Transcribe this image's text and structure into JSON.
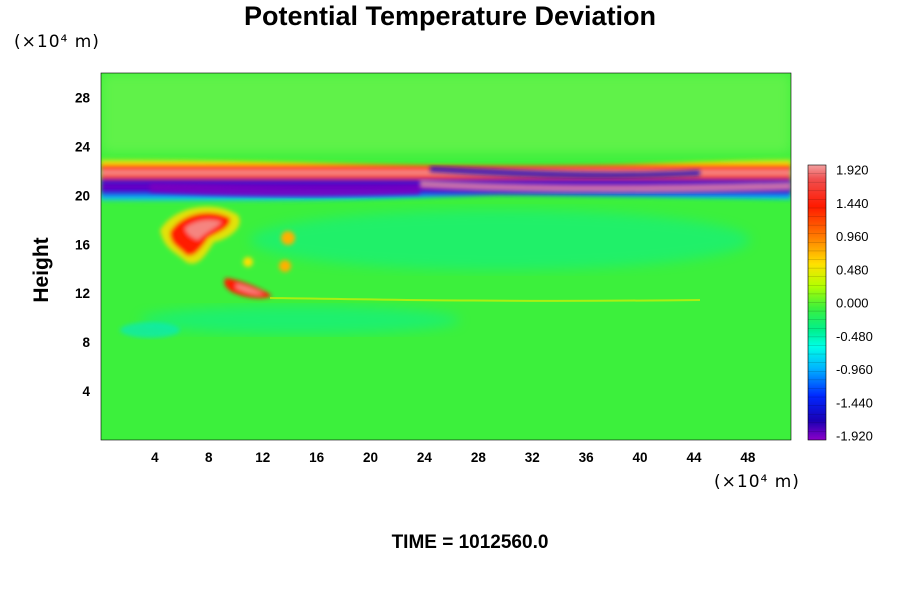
{
  "title": "Potential Temperature Deviation",
  "time_label": "TIME = 1012560.0",
  "chart_data": {
    "type": "heatmap",
    "title": "Potential Temperature Deviation",
    "xlabel": "",
    "ylabel": "Height",
    "x_unit": "(×10⁴ m)",
    "y_unit": "(×10⁴ m)",
    "x_ticks": [
      4,
      8,
      12,
      16,
      20,
      24,
      28,
      32,
      36,
      40,
      44,
      48
    ],
    "y_ticks": [
      4,
      8,
      12,
      16,
      20,
      24,
      28
    ],
    "xlim": [
      0,
      51.2
    ],
    "ylim": [
      0,
      30
    ],
    "colorbar": {
      "ticks": [
        "1.920",
        "1.440",
        "0.960",
        "0.480",
        "0.000",
        "-0.480",
        "-0.960",
        "-1.440",
        "-1.920"
      ],
      "range": [
        -1.92,
        1.92
      ]
    },
    "features": [
      {
        "name": "stratospheric-band",
        "y_range": [
          19.5,
          22.5
        ],
        "x_range": [
          0,
          51.2
        ],
        "min": -1.92,
        "max": 1.92
      },
      {
        "name": "warm-plume",
        "x_range": [
          4.5,
          13
        ],
        "y_range": [
          11.5,
          19
        ],
        "max": 1.92
      }
    ]
  }
}
